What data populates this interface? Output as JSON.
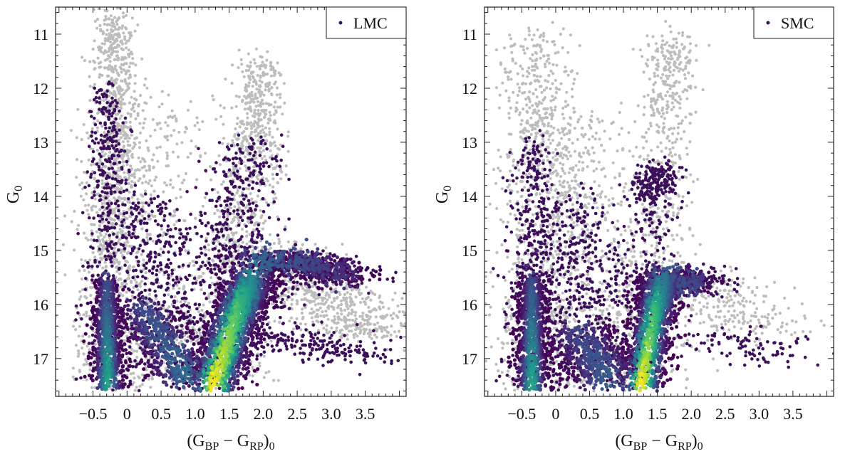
{
  "chart_data": [
    {
      "type": "scatter",
      "panel": "LMC",
      "legend": {
        "label": "LMC",
        "placement": "top-right",
        "marker_color": "#3b0f5a"
      },
      "xlabel": {
        "open": "(G",
        "sub1": "BP",
        "mid": " − G",
        "sub2": "RP",
        "close": ")",
        "sub3": "0"
      },
      "ylabel": {
        "main": "G",
        "sub": "0"
      },
      "xlim": [
        -1.05,
        4.1
      ],
      "ylim": [
        17.7,
        10.5
      ],
      "y_inverted": true,
      "xticks": [
        -0.5,
        0,
        0.5,
        1.0,
        1.5,
        2.0,
        2.5,
        3.0,
        3.5
      ],
      "xtick_labels": [
        "−0.5",
        "0",
        "0.5",
        "1.0",
        "1.5",
        "2.0",
        "2.5",
        "3.0",
        "3.5"
      ],
      "yticks": [
        11,
        12,
        13,
        14,
        15,
        16,
        17
      ],
      "ytick_labels": [
        "11",
        "12",
        "13",
        "14",
        "15",
        "16",
        "17"
      ],
      "grid": false,
      "mag_limit": 17.6,
      "colors": {
        "all_stars": "#bdbdbd",
        "selected": "#3b0f5a",
        "density_colormap": "viridis"
      },
      "populations": [
        {
          "layer": "all",
          "n": 1300,
          "path": [
            [
              -0.2,
              10.6,
              0.15
            ],
            [
              -0.15,
              13,
              0.2
            ],
            [
              -0.2,
              15,
              0.28
            ],
            [
              -0.2,
              17.6,
              0.3
            ]
          ]
        },
        {
          "layer": "all",
          "n": 900,
          "path": [
            [
              1.3,
              17.5,
              0.35
            ],
            [
              1.6,
              15,
              0.3
            ],
            [
              1.9,
              13,
              0.2
            ],
            [
              1.95,
              11.5,
              0.15
            ]
          ]
        },
        {
          "layer": "all",
          "n": 600,
          "path": [
            [
              0.5,
              12,
              0.45
            ],
            [
              0.5,
              16,
              0.6
            ],
            [
              0.7,
              17.4,
              0.6
            ]
          ]
        },
        {
          "layer": "all",
          "n": 700,
          "path": [
            [
              2.0,
              15.0,
              0.5
            ],
            [
              2.8,
              15.8,
              0.5
            ],
            [
              3.6,
              16.6,
              0.45
            ]
          ]
        },
        {
          "layer": "selected",
          "n": 400,
          "path": [
            [
              -0.3,
              12,
              0.12
            ],
            [
              -0.3,
              14,
              0.15
            ],
            [
              -0.25,
              17.5,
              0.2
            ]
          ]
        },
        {
          "layer": "selected",
          "n": 550,
          "path": [
            [
              0.4,
              14,
              0.4
            ],
            [
              0.6,
              17.3,
              0.5
            ]
          ]
        },
        {
          "layer": "selected",
          "n": 300,
          "path": [
            [
              1.5,
              15.5,
              0.3
            ],
            [
              1.8,
              13,
              0.25
            ]
          ]
        },
        {
          "layer": "selected",
          "n": 650,
          "path": [
            [
              1.3,
              17.5,
              0.4
            ],
            [
              2.2,
              15.2,
              0.3
            ],
            [
              3.3,
              15.5,
              0.4
            ]
          ]
        },
        {
          "layer": "selected",
          "n": 200,
          "path": [
            [
              2.0,
              16.5,
              0.5
            ],
            [
              3.5,
              17,
              0.4
            ]
          ]
        },
        {
          "layer": "density",
          "n": 700,
          "peak": [
            0.2,
            0.6
          ],
          "path": [
            [
              -0.3,
              15.6,
              0.1
            ],
            [
              -0.28,
              17.55,
              0.13
            ]
          ]
        },
        {
          "layer": "density",
          "n": 500,
          "peak": [
            0.22,
            0.35
          ],
          "path": [
            [
              0.2,
              16,
              0.25
            ],
            [
              0.9,
              17.4,
              0.3
            ]
          ]
        },
        {
          "layer": "density",
          "n": 1500,
          "peak": [
            1.0,
            0.45
          ],
          "path": [
            [
              1.25,
              17.55,
              0.22
            ],
            [
              1.6,
              16.2,
              0.2
            ],
            [
              1.85,
              15.5,
              0.2
            ]
          ]
        },
        {
          "layer": "density",
          "n": 500,
          "peak": [
            0.35,
            0.12
          ],
          "path": [
            [
              1.8,
              15.2,
              0.3
            ],
            [
              2.6,
              15.2,
              0.2
            ],
            [
              3.3,
              15.5,
              0.2
            ]
          ]
        }
      ]
    },
    {
      "type": "scatter",
      "panel": "SMC",
      "legend": {
        "label": "SMC",
        "placement": "top-right",
        "marker_color": "#3b0f5a"
      },
      "xlabel": {
        "open": "(G",
        "sub1": "BP",
        "mid": " − G",
        "sub2": "RP",
        "close": ")",
        "sub3": "0"
      },
      "ylabel": {
        "main": "G",
        "sub": "0"
      },
      "xlim": [
        -1.05,
        4.1
      ],
      "ylim": [
        17.7,
        10.5
      ],
      "y_inverted": true,
      "xticks": [
        -0.5,
        0,
        0.5,
        1.0,
        1.5,
        2.0,
        2.5,
        3.0,
        3.5
      ],
      "xtick_labels": [
        "−0.5",
        "0",
        "0.5",
        "1.0",
        "1.5",
        "2.0",
        "2.5",
        "3.0",
        "3.5"
      ],
      "yticks": [
        11,
        12,
        13,
        14,
        15,
        16,
        17
      ],
      "ytick_labels": [
        "11",
        "12",
        "13",
        "14",
        "15",
        "16",
        "17"
      ],
      "grid": false,
      "mag_limit": 17.6,
      "colors": {
        "all_stars": "#bdbdbd",
        "selected": "#3b0f5a",
        "density_colormap": "viridis"
      },
      "populations": [
        {
          "layer": "all",
          "n": 800,
          "path": [
            [
              -0.3,
              11,
              0.25
            ],
            [
              -0.2,
              14,
              0.35
            ],
            [
              -0.3,
              17.6,
              0.3
            ]
          ]
        },
        {
          "layer": "all",
          "n": 900,
          "path": [
            [
              0.3,
              12.5,
              0.4
            ],
            [
              0.5,
              16,
              0.6
            ],
            [
              0.7,
              17.5,
              0.6
            ]
          ]
        },
        {
          "layer": "all",
          "n": 600,
          "path": [
            [
              1.2,
              17.5,
              0.3
            ],
            [
              1.5,
              15,
              0.25
            ],
            [
              1.6,
              12.5,
              0.2
            ],
            [
              1.7,
              11,
              0.2
            ]
          ]
        },
        {
          "layer": "all",
          "n": 250,
          "path": [
            [
              2.0,
              15.5,
              0.5
            ],
            [
              3.0,
              16.5,
              0.5
            ]
          ]
        },
        {
          "layer": "selected",
          "n": 400,
          "path": [
            [
              -0.35,
              13,
              0.15
            ],
            [
              -0.35,
              17.5,
              0.2
            ]
          ]
        },
        {
          "layer": "selected",
          "n": 600,
          "path": [
            [
              0.2,
              14,
              0.4
            ],
            [
              0.5,
              17.5,
              0.5
            ]
          ]
        },
        {
          "layer": "selected",
          "n": 400,
          "path": [
            [
              1.35,
              17,
              0.25
            ],
            [
              1.45,
              14,
              0.2
            ],
            [
              1.5,
              13.5,
              0.15
            ]
          ]
        },
        {
          "layer": "selected",
          "n": 250,
          "path": [
            [
              1.5,
              15.5,
              0.3
            ],
            [
              2.3,
              15.6,
              0.3
            ]
          ]
        },
        {
          "layer": "selected",
          "n": 100,
          "path": [
            [
              2.3,
              16.5,
              0.5
            ],
            [
              3.3,
              17,
              0.4
            ]
          ]
        },
        {
          "layer": "density",
          "n": 700,
          "peak": [
            0.2,
            0.6
          ],
          "path": [
            [
              -0.35,
              15.5,
              0.1
            ],
            [
              -0.35,
              17.55,
              0.13
            ]
          ]
        },
        {
          "layer": "density",
          "n": 500,
          "peak": [
            0.2,
            0.3
          ],
          "path": [
            [
              0.3,
              16.5,
              0.3
            ],
            [
              0.8,
              17.4,
              0.35
            ]
          ]
        },
        {
          "layer": "density",
          "n": 1100,
          "peak": [
            1.0,
            0.35
          ],
          "path": [
            [
              1.25,
              17.55,
              0.18
            ],
            [
              1.45,
              16.2,
              0.16
            ],
            [
              1.6,
              15.5,
              0.2
            ]
          ]
        },
        {
          "layer": "density",
          "n": 200,
          "peak": [
            0.3,
            0.2
          ],
          "path": [
            [
              1.6,
              15.5,
              0.2
            ],
            [
              2.1,
              15.6,
              0.2
            ]
          ]
        }
      ]
    }
  ]
}
